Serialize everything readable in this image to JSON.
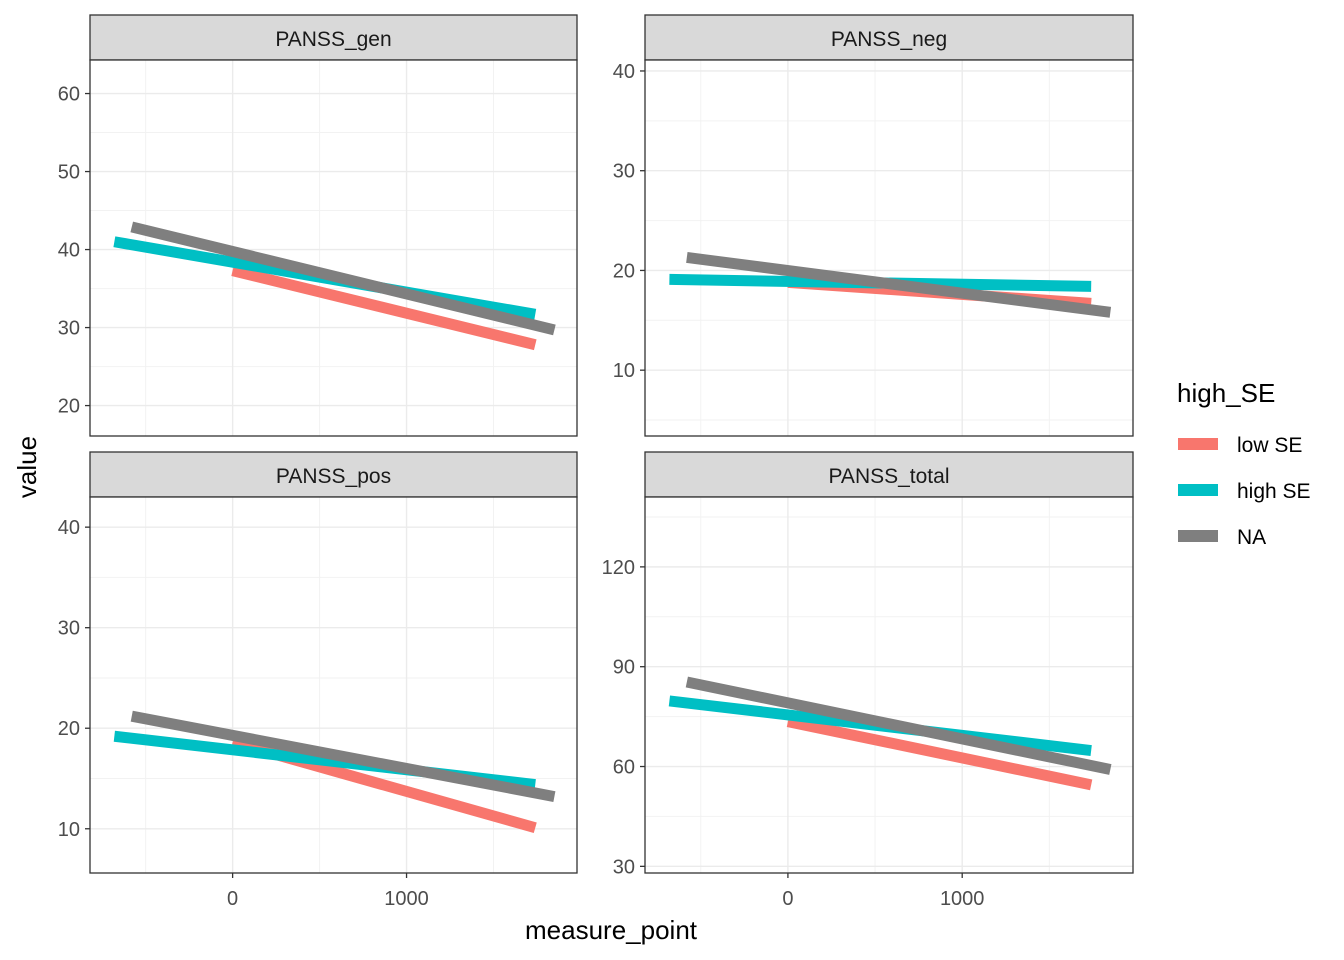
{
  "chart_data": {
    "type": "line",
    "xlabel": "measure_point",
    "ylabel": "value",
    "legend": {
      "title": "high_SE",
      "position": "right",
      "entries": [
        {
          "label": "low SE",
          "color": "#F8766D"
        },
        {
          "label": "high SE",
          "color": "#00BFC4"
        },
        {
          "label": "NA",
          "color": "#7F7F7F"
        }
      ]
    },
    "grid": true,
    "xlim": [
      -820,
      1980
    ],
    "x_ticks": [
      0,
      1000
    ],
    "panels": [
      {
        "title": "PANSS_gen",
        "ylim": [
          16.1,
          64.3
        ],
        "y_ticks": [
          20,
          30,
          40,
          50,
          60
        ],
        "trend_lines": [
          {
            "series": "low SE",
            "x": [
              0,
              1740
            ],
            "y": [
              37.3,
              27.8
            ]
          },
          {
            "series": "high SE",
            "x": [
              -680,
              1740
            ],
            "y": [
              41.0,
              31.7
            ]
          },
          {
            "series": "NA",
            "x": [
              -580,
              1850
            ],
            "y": [
              42.9,
              29.7
            ]
          }
        ]
      },
      {
        "title": "PANSS_neg",
        "ylim": [
          3.4,
          41.1
        ],
        "y_ticks": [
          10,
          20,
          30,
          40
        ],
        "trend_lines": [
          {
            "series": "low SE",
            "x": [
              0,
              1740
            ],
            "y": [
              18.8,
              16.7
            ]
          },
          {
            "series": "high SE",
            "x": [
              -680,
              1740
            ],
            "y": [
              19.1,
              18.4
            ]
          },
          {
            "series": "NA",
            "x": [
              -580,
              1850
            ],
            "y": [
              21.3,
              15.8
            ]
          }
        ]
      },
      {
        "title": "PANSS_pos",
        "ylim": [
          5.6,
          43.0
        ],
        "y_ticks": [
          10,
          20,
          30,
          40
        ],
        "trend_lines": [
          {
            "series": "low SE",
            "x": [
              0,
              1740
            ],
            "y": [
              18.6,
              10.1
            ]
          },
          {
            "series": "high SE",
            "x": [
              -680,
              1740
            ],
            "y": [
              19.2,
              14.4
            ]
          },
          {
            "series": "NA",
            "x": [
              -580,
              1850
            ],
            "y": [
              21.2,
              13.2
            ]
          }
        ]
      },
      {
        "title": "PANSS_total",
        "ylim": [
          28.0,
          141.0
        ],
        "y_ticks": [
          30,
          60,
          90,
          120
        ],
        "trend_lines": [
          {
            "series": "low SE",
            "x": [
              0,
              1740
            ],
            "y": [
              73.5,
              54.5
            ]
          },
          {
            "series": "high SE",
            "x": [
              -680,
              1740
            ],
            "y": [
              79.7,
              64.8
            ]
          },
          {
            "series": "NA",
            "x": [
              -580,
              1850
            ],
            "y": [
              85.4,
              59.1
            ]
          }
        ]
      }
    ]
  }
}
